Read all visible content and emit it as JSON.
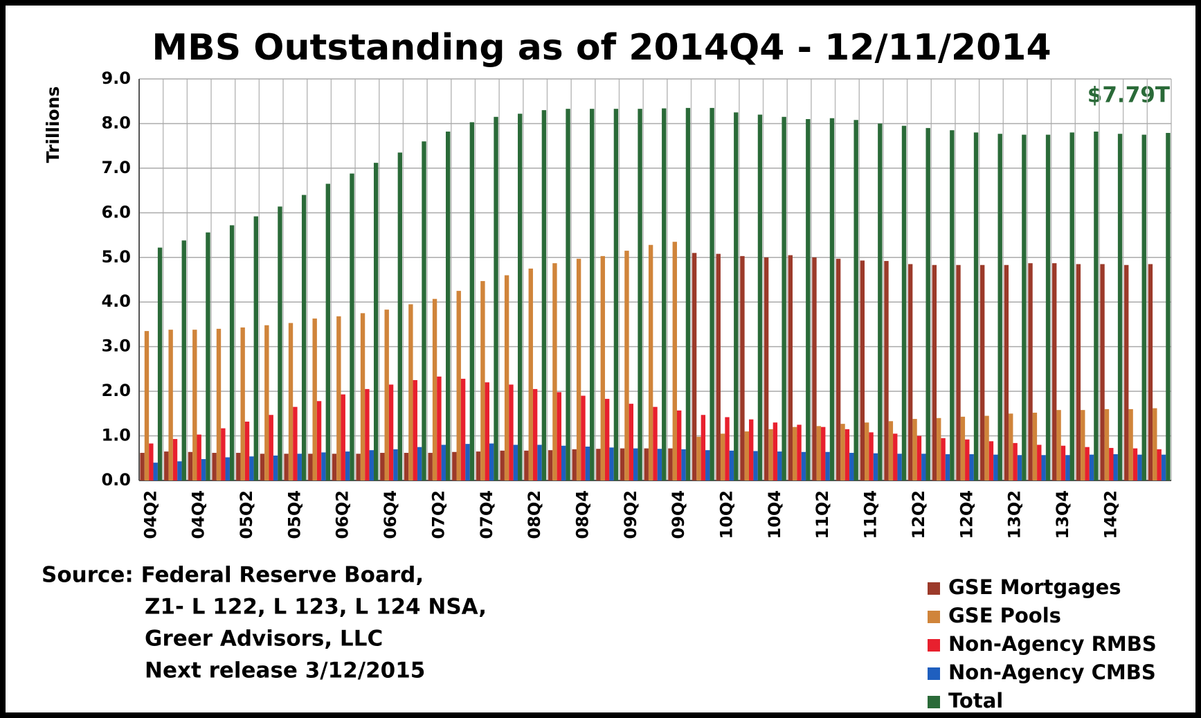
{
  "chart_data": {
    "type": "bar",
    "title": "MBS Outstanding as of 2014Q4 - 12/11/2014",
    "y_label": "Trillions",
    "annotation": "$7.79T",
    "source": [
      "Source: Federal Reserve Board,",
      "Z1- L 122, L 123, L 124 NSA,",
      "Greer Advisors, LLC",
      "Next release 3/12/2015"
    ],
    "categories": [
      "04Q2",
      null,
      "04Q4",
      null,
      "05Q2",
      null,
      "05Q4",
      null,
      "06Q2",
      null,
      "06Q4",
      null,
      "07Q2",
      null,
      "07Q4",
      null,
      "08Q2",
      null,
      "08Q4",
      null,
      "09Q2",
      null,
      "09Q4",
      null,
      "10Q2",
      null,
      "10Q4",
      null,
      "11Q2",
      null,
      "11Q4",
      null,
      "12Q2",
      null,
      "12Q4",
      null,
      "13Q2",
      null,
      "13Q4",
      null,
      "14Q2",
      null,
      null
    ],
    "series": [
      {
        "name": "GSE Mortgages",
        "color": "#9c3a2a",
        "values": [
          0.62,
          0.65,
          0.64,
          0.62,
          0.62,
          0.6,
          0.6,
          0.6,
          0.6,
          0.6,
          0.62,
          0.62,
          0.62,
          0.64,
          0.65,
          0.67,
          0.67,
          0.68,
          0.7,
          0.71,
          0.72,
          0.72,
          0.72,
          5.1,
          5.08,
          5.03,
          5.0,
          5.05,
          5.0,
          4.97,
          4.93,
          4.92,
          4.85,
          4.83,
          4.83,
          4.83,
          4.83,
          4.87,
          4.87,
          4.85,
          4.85,
          4.83,
          4.85
        ]
      },
      {
        "name": "GSE Pools",
        "color": "#d0843a",
        "values": [
          3.35,
          3.38,
          3.38,
          3.4,
          3.43,
          3.48,
          3.53,
          3.63,
          3.68,
          3.75,
          3.83,
          3.95,
          4.07,
          4.25,
          4.47,
          4.6,
          4.75,
          4.87,
          4.97,
          5.03,
          5.15,
          5.28,
          5.35,
          0.98,
          1.05,
          1.1,
          1.15,
          1.2,
          1.22,
          1.27,
          1.3,
          1.33,
          1.38,
          1.4,
          1.43,
          1.45,
          1.5,
          1.52,
          1.58,
          1.58,
          1.6,
          1.6,
          1.62
        ]
      },
      {
        "name": "Non-Agency RMBS",
        "color": "#e8202e",
        "values": [
          0.83,
          0.93,
          1.03,
          1.17,
          1.32,
          1.47,
          1.65,
          1.78,
          1.93,
          2.05,
          2.15,
          2.25,
          2.33,
          2.28,
          2.2,
          2.15,
          2.05,
          1.98,
          1.9,
          1.83,
          1.72,
          1.65,
          1.57,
          1.47,
          1.42,
          1.37,
          1.3,
          1.25,
          1.2,
          1.15,
          1.08,
          1.05,
          1.0,
          0.95,
          0.92,
          0.88,
          0.84,
          0.8,
          0.78,
          0.75,
          0.73,
          0.72,
          0.7
        ]
      },
      {
        "name": "Non-Agency CMBS",
        "color": "#1f5fbf",
        "values": [
          0.4,
          0.43,
          0.48,
          0.52,
          0.54,
          0.56,
          0.6,
          0.63,
          0.65,
          0.68,
          0.7,
          0.75,
          0.8,
          0.82,
          0.83,
          0.8,
          0.8,
          0.78,
          0.76,
          0.74,
          0.72,
          0.71,
          0.7,
          0.68,
          0.67,
          0.66,
          0.65,
          0.64,
          0.64,
          0.62,
          0.61,
          0.6,
          0.6,
          0.59,
          0.59,
          0.58,
          0.57,
          0.57,
          0.57,
          0.58,
          0.59,
          0.58,
          0.58
        ]
      },
      {
        "name": "Total",
        "color": "#2a6a38",
        "values": [
          5.22,
          5.38,
          5.56,
          5.72,
          5.92,
          6.14,
          6.4,
          6.65,
          6.88,
          7.12,
          7.35,
          7.6,
          7.82,
          8.03,
          8.15,
          8.22,
          8.3,
          8.33,
          8.33,
          8.33,
          8.33,
          8.34,
          8.35,
          8.35,
          8.25,
          8.2,
          8.15,
          8.1,
          8.12,
          8.08,
          8.0,
          7.95,
          7.9,
          7.85,
          7.8,
          7.77,
          7.75,
          7.75,
          7.8,
          7.82,
          7.77,
          7.75,
          7.79
        ]
      }
    ],
    "ylim": [
      0,
      9
    ],
    "yticks": [
      {
        "value": 0,
        "label": "0.0"
      },
      {
        "value": 1,
        "label": "1.0"
      },
      {
        "value": 2,
        "label": "2.0"
      },
      {
        "value": 3,
        "label": "3.0"
      },
      {
        "value": 4,
        "label": "4.0"
      },
      {
        "value": 5,
        "label": "5.0"
      },
      {
        "value": 6,
        "label": "6.0"
      },
      {
        "value": 7,
        "label": "7.0"
      },
      {
        "value": 8,
        "label": "8.0"
      },
      {
        "value": 9,
        "label": "9.0"
      }
    ],
    "grid": true,
    "legend": "bottom-right"
  }
}
